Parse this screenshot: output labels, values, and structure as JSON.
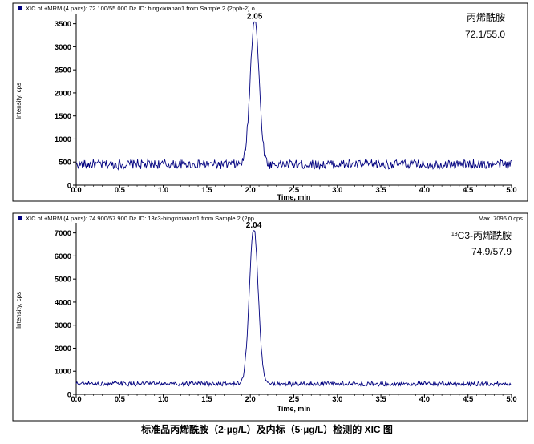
{
  "caption": "标准品丙烯酰胺（2·µg/L）及内标（5·µg/L）检测的 XIC 图",
  "colors": {
    "trace": "#00007f",
    "frame": "#000000",
    "marker": "#00007f"
  },
  "chart_data": [
    {
      "type": "line",
      "header": "XIC of +MRM (4 pairs): 72.100/55.000 Da ID: bingxixianan1 from Sample 2 (2ppb-2) o...",
      "header_right": "",
      "xlabel": "Time, min",
      "ylabel": "Intensity, cps",
      "xlim": [
        0.0,
        5.0
      ],
      "ylim": [
        0,
        3650
      ],
      "x_ticks": [
        "0.0",
        "0.5",
        "1.0",
        "1.5",
        "2.0",
        "2.5",
        "3.0",
        "3.5",
        "4.0",
        "4.5",
        "5.0"
      ],
      "y_ticks": [
        {
          "value": 0,
          "label": "0"
        },
        {
          "value": 500,
          "label": "500"
        },
        {
          "value": 1000,
          "label": "1000"
        },
        {
          "value": 1500,
          "label": "1500"
        },
        {
          "value": 2000,
          "label": "2000"
        },
        {
          "value": 2500,
          "label": "2500"
        },
        {
          "value": 3000,
          "label": "3000"
        },
        {
          "value": 3500,
          "label": "3500"
        }
      ],
      "baseline": {
        "min": 340,
        "max": 560
      },
      "peak": {
        "x": 2.05,
        "y": 3540,
        "label": "2.05",
        "width": 0.05
      },
      "annotation_lines": [
        "丙烯酰胺",
        "72.1/55.0"
      ],
      "annotation_superscript": ""
    },
    {
      "type": "line",
      "header": "XIC of +MRM (4 pairs): 74.900/57.900 Da ID: 13c3-bingxixianan1 from Sample 2 (2pp...",
      "header_right": "Max. 7096.0 cps.",
      "xlabel": "Time, min",
      "ylabel": "Intensity, cps",
      "xlim": [
        0.0,
        5.0
      ],
      "ylim": [
        0,
        7300
      ],
      "x_ticks": [
        "0.0",
        "0.5",
        "1.0",
        "1.5",
        "2.0",
        "2.5",
        "3.0",
        "3.5",
        "4.0",
        "4.5",
        "5.0"
      ],
      "y_ticks": [
        {
          "value": 0,
          "label": "0"
        },
        {
          "value": 1000,
          "label": "1000"
        },
        {
          "value": 2000,
          "label": "2000"
        },
        {
          "value": 3000,
          "label": "3000"
        },
        {
          "value": 4000,
          "label": "4000"
        },
        {
          "value": 5000,
          "label": "5000"
        },
        {
          "value": 6000,
          "label": "6000"
        },
        {
          "value": 7000,
          "label": "7000"
        }
      ],
      "baseline": {
        "min": 350,
        "max": 560
      },
      "peak": {
        "x": 2.04,
        "y": 7096,
        "label": "2.04",
        "width": 0.05
      },
      "annotation_lines": [
        "C3-丙烯酰胺",
        "74.9/57.9"
      ],
      "annotation_superscript": "13"
    }
  ]
}
